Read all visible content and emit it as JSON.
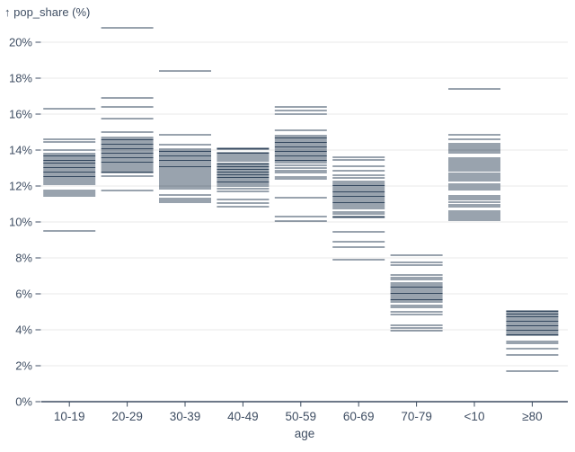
{
  "chart_data": {
    "type": "tick",
    "title": "↑ pop_share (%)",
    "xlabel": "age",
    "ylabel": "pop_share (%)",
    "y_tick_labels": [
      "0%",
      "2%",
      "4%",
      "6%",
      "8%",
      "10%",
      "12%",
      "14%",
      "16%",
      "18%",
      "20%"
    ],
    "y_ticks": [
      0,
      2,
      4,
      6,
      8,
      10,
      12,
      14,
      16,
      18,
      20
    ],
    "ylim": [
      0,
      21.5
    ],
    "grid": true,
    "categories": [
      "10-19",
      "20-29",
      "30-39",
      "40-49",
      "50-59",
      "60-69",
      "70-79",
      "<10",
      "≥80"
    ],
    "series": [
      {
        "category": "10-19",
        "values": [
          16.3,
          14.6,
          14.45,
          14.0,
          13.8,
          13.7,
          13.65,
          13.55,
          13.45,
          13.4,
          13.3,
          13.25,
          13.15,
          13.05,
          13.0,
          12.9,
          12.8,
          12.75,
          12.65,
          12.55,
          12.5,
          12.4,
          12.3,
          12.2,
          12.1,
          11.75,
          11.65,
          11.55,
          11.45,
          9.5
        ]
      },
      {
        "category": "20-29",
        "values": [
          20.8,
          16.9,
          16.4,
          15.75,
          15.0,
          14.7,
          14.6,
          14.55,
          14.45,
          14.35,
          14.3,
          14.2,
          14.1,
          14.05,
          13.95,
          13.85,
          13.8,
          13.7,
          13.6,
          13.55,
          13.45,
          13.35,
          13.3,
          13.2,
          13.1,
          13.0,
          12.9,
          12.8,
          12.75,
          12.55,
          11.75
        ]
      },
      {
        "category": "30-39",
        "values": [
          18.4,
          14.85,
          14.3,
          14.05,
          13.95,
          13.9,
          13.8,
          13.7,
          13.65,
          13.55,
          13.45,
          13.4,
          13.3,
          13.2,
          13.1,
          13.05,
          12.95,
          12.85,
          12.75,
          12.65,
          12.55,
          12.45,
          12.35,
          12.25,
          12.15,
          12.05,
          11.95,
          11.85,
          11.5,
          11.3,
          11.2,
          11.1
        ]
      },
      {
        "category": "40-49",
        "values": [
          14.1,
          14.05,
          13.85,
          13.8,
          13.7,
          13.6,
          13.5,
          13.4,
          13.25,
          13.2,
          13.1,
          13.05,
          12.95,
          12.9,
          12.8,
          12.75,
          12.65,
          12.6,
          12.5,
          12.45,
          12.35,
          12.25,
          12.2,
          12.1,
          12.0,
          11.85,
          11.7,
          11.25,
          11.05,
          10.85
        ]
      },
      {
        "category": "50-59",
        "values": [
          16.4,
          16.2,
          16.0,
          15.1,
          14.8,
          14.7,
          14.65,
          14.55,
          14.45,
          14.4,
          14.3,
          14.2,
          14.15,
          14.05,
          13.95,
          13.9,
          13.8,
          13.7,
          13.65,
          13.55,
          13.45,
          13.4,
          13.3,
          13.15,
          13.0,
          12.85,
          12.75,
          12.5,
          12.4,
          11.35,
          10.3,
          10.05
        ]
      },
      {
        "category": "60-69",
        "values": [
          13.6,
          13.45,
          13.1,
          12.85,
          12.6,
          12.45,
          12.25,
          12.15,
          12.05,
          12.0,
          11.9,
          11.8,
          11.7,
          11.65,
          11.55,
          11.45,
          11.4,
          11.3,
          11.2,
          11.1,
          11.05,
          10.95,
          10.85,
          10.75,
          10.55,
          10.45,
          10.3,
          10.25,
          9.45,
          8.9,
          8.6,
          7.9
        ]
      },
      {
        "category": "70-79",
        "values": [
          8.15,
          7.75,
          7.6,
          7.05,
          6.9,
          6.8,
          6.6,
          6.5,
          6.4,
          6.35,
          6.25,
          6.15,
          6.05,
          6.0,
          5.9,
          5.8,
          5.7,
          5.65,
          5.55,
          5.35,
          5.25,
          5.0,
          4.85,
          4.25,
          4.1,
          3.95
        ]
      },
      {
        "category": "<10",
        "values": [
          17.4,
          14.85,
          14.6,
          14.35,
          14.25,
          14.15,
          14.05,
          13.95,
          13.85,
          13.55,
          13.45,
          13.35,
          13.25,
          13.15,
          13.05,
          12.95,
          12.85,
          12.7,
          12.6,
          12.5,
          12.4,
          12.3,
          12.1,
          12.0,
          11.9,
          11.8,
          11.45,
          11.35,
          11.25,
          11.1,
          10.95,
          10.85,
          10.6,
          10.5,
          10.4,
          10.3,
          10.2,
          10.1
        ]
      },
      {
        "category": "≥80",
        "values": [
          5.05,
          5.0,
          4.9,
          4.85,
          4.75,
          4.7,
          4.6,
          4.5,
          4.45,
          4.35,
          4.25,
          4.2,
          4.1,
          4.0,
          3.95,
          3.85,
          3.75,
          3.7,
          3.35,
          3.25,
          2.95,
          2.6,
          1.7
        ]
      }
    ],
    "colors": {
      "tick": "#33475e",
      "grid": "#e8e8e8",
      "axis": "#3d4c60",
      "label": "#3f4e63",
      "background": "#ffffff"
    },
    "legend": null
  }
}
